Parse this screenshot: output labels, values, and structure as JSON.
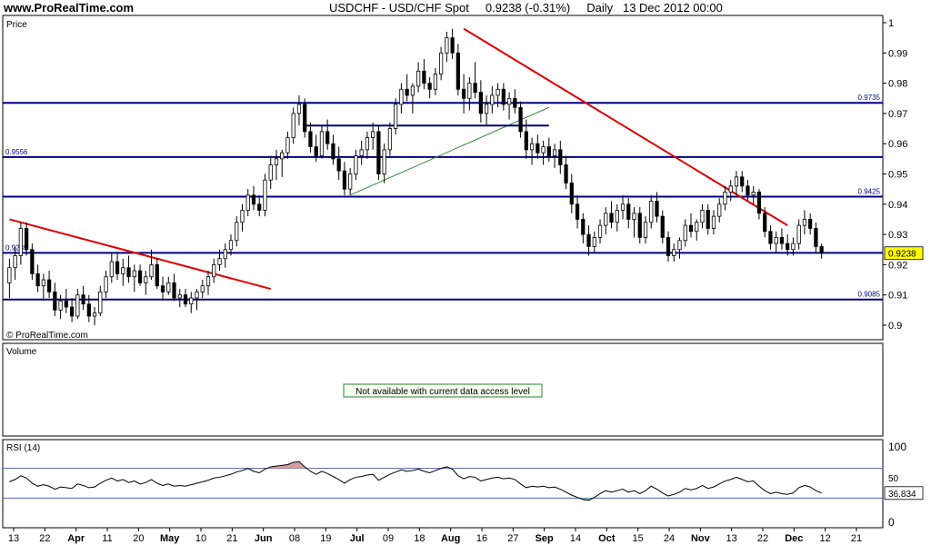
{
  "header": {
    "site": "www.ProRealTime.com",
    "symbol": "USDCHF - USD/CHF Spot",
    "last": "0.9238 (-0.31%)",
    "period": "Daily",
    "datetime": "13 Dec 2012 00:00"
  },
  "colors": {
    "line_blue": "#000080",
    "trend_red": "#e00000",
    "support_green": "#2e8b2e",
    "candle_up": "#ffffff",
    "candle_down": "#000000",
    "na_border": "#2e7d32",
    "rsi_over": "#d4a0a0",
    "rsi_under": "#80c0b0"
  },
  "price_panel": {
    "label": "Price",
    "watermark": "© ProRealTime.com",
    "price_tag": "0.9238",
    "levels": [
      {
        "value": 0.9735,
        "label": "0.9735",
        "label_side": "right"
      },
      {
        "value": 0.9556,
        "label": "0.9556",
        "label_side": "left"
      },
      {
        "value": 0.9425,
        "label": "0.9425",
        "label_side": "right"
      },
      {
        "value": 0.9239,
        "label": "0.9239",
        "label_side": "left"
      },
      {
        "value": 0.9085,
        "label": "0.9085",
        "label_side": "right"
      }
    ],
    "y_ticks": [
      "1",
      "0.99",
      "0.98",
      "0.97",
      "0.96",
      "0.95",
      "0.94",
      "0.93",
      "0.92",
      "0.91",
      "0.9"
    ]
  },
  "volume_panel": {
    "label": "Volume",
    "message": "Not available with current data access level"
  },
  "rsi_panel": {
    "label": "RSI (14)",
    "ticks": [
      "100",
      "50",
      "0"
    ],
    "value_tag": "36.834",
    "overbought": 70,
    "oversold": 30
  },
  "x_axis": {
    "labels": [
      "13",
      "22",
      "Apr",
      "11",
      "20",
      "May",
      "10",
      "21",
      "Jun",
      "08",
      "19",
      "Jul",
      "09",
      "18",
      "Aug",
      "16",
      "27",
      "Sep",
      "14",
      "Oct",
      "15",
      "24",
      "Nov",
      "13",
      "22",
      "Dec",
      "12",
      "21"
    ],
    "bold": [
      "Apr",
      "May",
      "Jun",
      "Jul",
      "Aug",
      "Sep",
      "Oct",
      "Nov",
      "Dec"
    ]
  },
  "chart_data": {
    "type": "candlestick",
    "title": "USDCHF - USD/CHF Spot",
    "ylim": [
      0.895,
      1.0
    ],
    "ohlc": [
      [
        0.914,
        0.922,
        0.909,
        0.919
      ],
      [
        0.919,
        0.926,
        0.915,
        0.923
      ],
      [
        0.923,
        0.934,
        0.92,
        0.932
      ],
      [
        0.932,
        0.934,
        0.923,
        0.925
      ],
      [
        0.925,
        0.927,
        0.915,
        0.917
      ],
      [
        0.917,
        0.92,
        0.911,
        0.913
      ],
      [
        0.913,
        0.917,
        0.908,
        0.915
      ],
      [
        0.915,
        0.918,
        0.909,
        0.911
      ],
      [
        0.911,
        0.914,
        0.903,
        0.905
      ],
      [
        0.905,
        0.91,
        0.902,
        0.908
      ],
      [
        0.908,
        0.912,
        0.904,
        0.906
      ],
      [
        0.906,
        0.909,
        0.901,
        0.903
      ],
      [
        0.903,
        0.912,
        0.902,
        0.91
      ],
      [
        0.91,
        0.913,
        0.905,
        0.907
      ],
      [
        0.907,
        0.91,
        0.901,
        0.903
      ],
      [
        0.903,
        0.906,
        0.9,
        0.904
      ],
      [
        0.904,
        0.913,
        0.903,
        0.911
      ],
      [
        0.911,
        0.918,
        0.909,
        0.916
      ],
      [
        0.916,
        0.924,
        0.914,
        0.921
      ],
      [
        0.921,
        0.924,
        0.915,
        0.917
      ],
      [
        0.917,
        0.922,
        0.913,
        0.919
      ],
      [
        0.919,
        0.923,
        0.914,
        0.916
      ],
      [
        0.916,
        0.92,
        0.911,
        0.918
      ],
      [
        0.918,
        0.92,
        0.913,
        0.914
      ],
      [
        0.914,
        0.918,
        0.91,
        0.916
      ],
      [
        0.916,
        0.925,
        0.915,
        0.92
      ],
      [
        0.92,
        0.922,
        0.912,
        0.913
      ],
      [
        0.913,
        0.916,
        0.908,
        0.911
      ],
      [
        0.911,
        0.916,
        0.91,
        0.914
      ],
      [
        0.914,
        0.917,
        0.908,
        0.909
      ],
      [
        0.909,
        0.912,
        0.906,
        0.91
      ],
      [
        0.91,
        0.912,
        0.906,
        0.907
      ],
      [
        0.907,
        0.911,
        0.904,
        0.909
      ],
      [
        0.909,
        0.912,
        0.905,
        0.911
      ],
      [
        0.911,
        0.915,
        0.909,
        0.913
      ],
      [
        0.913,
        0.918,
        0.91,
        0.916
      ],
      [
        0.916,
        0.922,
        0.914,
        0.92
      ],
      [
        0.92,
        0.925,
        0.918,
        0.922
      ],
      [
        0.922,
        0.927,
        0.919,
        0.925
      ],
      [
        0.925,
        0.93,
        0.923,
        0.928
      ],
      [
        0.928,
        0.936,
        0.926,
        0.934
      ],
      [
        0.934,
        0.94,
        0.931,
        0.938
      ],
      [
        0.938,
        0.945,
        0.936,
        0.943
      ],
      [
        0.943,
        0.946,
        0.938,
        0.94
      ],
      [
        0.94,
        0.943,
        0.936,
        0.938
      ],
      [
        0.938,
        0.95,
        0.936,
        0.948
      ],
      [
        0.948,
        0.956,
        0.945,
        0.953
      ],
      [
        0.953,
        0.958,
        0.948,
        0.955
      ],
      [
        0.955,
        0.958,
        0.949,
        0.957
      ],
      [
        0.957,
        0.964,
        0.955,
        0.962
      ],
      [
        0.962,
        0.972,
        0.96,
        0.97
      ],
      [
        0.97,
        0.976,
        0.966,
        0.973
      ],
      [
        0.973,
        0.975,
        0.962,
        0.964
      ],
      [
        0.964,
        0.967,
        0.957,
        0.959
      ],
      [
        0.959,
        0.963,
        0.954,
        0.956
      ],
      [
        0.956,
        0.966,
        0.955,
        0.964
      ],
      [
        0.964,
        0.968,
        0.958,
        0.96
      ],
      [
        0.96,
        0.963,
        0.953,
        0.955
      ],
      [
        0.955,
        0.959,
        0.948,
        0.951
      ],
      [
        0.951,
        0.954,
        0.943,
        0.945
      ],
      [
        0.945,
        0.952,
        0.943,
        0.95
      ],
      [
        0.95,
        0.958,
        0.948,
        0.956
      ],
      [
        0.956,
        0.961,
        0.953,
        0.958
      ],
      [
        0.958,
        0.964,
        0.955,
        0.962
      ],
      [
        0.962,
        0.967,
        0.958,
        0.964
      ],
      [
        0.964,
        0.966,
        0.948,
        0.95
      ],
      [
        0.95,
        0.96,
        0.947,
        0.958
      ],
      [
        0.958,
        0.967,
        0.956,
        0.965
      ],
      [
        0.965,
        0.975,
        0.963,
        0.973
      ],
      [
        0.973,
        0.98,
        0.97,
        0.978
      ],
      [
        0.978,
        0.983,
        0.974,
        0.976
      ],
      [
        0.976,
        0.98,
        0.97,
        0.979
      ],
      [
        0.979,
        0.987,
        0.977,
        0.984
      ],
      [
        0.984,
        0.988,
        0.978,
        0.98
      ],
      [
        0.98,
        0.982,
        0.975,
        0.978
      ],
      [
        0.978,
        0.985,
        0.976,
        0.983
      ],
      [
        0.983,
        0.992,
        0.981,
        0.99
      ],
      [
        0.99,
        0.997,
        0.987,
        0.995
      ],
      [
        0.995,
        0.998,
        0.988,
        0.99
      ],
      [
        0.99,
        0.993,
        0.976,
        0.978
      ],
      [
        0.978,
        0.983,
        0.97,
        0.975
      ],
      [
        0.975,
        0.982,
        0.971,
        0.98
      ],
      [
        0.98,
        0.987,
        0.975,
        0.977
      ],
      [
        0.977,
        0.981,
        0.967,
        0.97
      ],
      [
        0.97,
        0.976,
        0.966,
        0.973
      ],
      [
        0.973,
        0.979,
        0.97,
        0.976
      ],
      [
        0.976,
        0.98,
        0.972,
        0.978
      ],
      [
        0.978,
        0.98,
        0.971,
        0.973
      ],
      [
        0.973,
        0.977,
        0.968,
        0.975
      ],
      [
        0.975,
        0.978,
        0.97,
        0.972
      ],
      [
        0.972,
        0.974,
        0.962,
        0.964
      ],
      [
        0.964,
        0.968,
        0.955,
        0.958
      ],
      [
        0.958,
        0.962,
        0.953,
        0.96
      ],
      [
        0.96,
        0.963,
        0.955,
        0.957
      ],
      [
        0.957,
        0.961,
        0.953,
        0.959
      ],
      [
        0.959,
        0.962,
        0.954,
        0.956
      ],
      [
        0.956,
        0.96,
        0.952,
        0.958
      ],
      [
        0.958,
        0.961,
        0.95,
        0.953
      ],
      [
        0.953,
        0.956,
        0.945,
        0.947
      ],
      [
        0.947,
        0.95,
        0.937,
        0.94
      ],
      [
        0.94,
        0.943,
        0.932,
        0.935
      ],
      [
        0.935,
        0.937,
        0.927,
        0.93
      ],
      [
        0.93,
        0.933,
        0.923,
        0.926
      ],
      [
        0.926,
        0.931,
        0.924,
        0.929
      ],
      [
        0.929,
        0.935,
        0.927,
        0.933
      ],
      [
        0.933,
        0.939,
        0.93,
        0.937
      ],
      [
        0.937,
        0.941,
        0.932,
        0.934
      ],
      [
        0.934,
        0.94,
        0.931,
        0.938
      ],
      [
        0.938,
        0.943,
        0.935,
        0.94
      ],
      [
        0.94,
        0.942,
        0.932,
        0.935
      ],
      [
        0.935,
        0.939,
        0.929,
        0.937
      ],
      [
        0.937,
        0.939,
        0.927,
        0.929
      ],
      [
        0.929,
        0.936,
        0.927,
        0.934
      ],
      [
        0.934,
        0.943,
        0.932,
        0.941
      ],
      [
        0.941,
        0.944,
        0.934,
        0.936
      ],
      [
        0.936,
        0.938,
        0.927,
        0.929
      ],
      [
        0.929,
        0.931,
        0.921,
        0.923
      ],
      [
        0.923,
        0.927,
        0.921,
        0.925
      ],
      [
        0.925,
        0.929,
        0.922,
        0.928
      ],
      [
        0.928,
        0.935,
        0.926,
        0.933
      ],
      [
        0.933,
        0.937,
        0.929,
        0.931
      ],
      [
        0.931,
        0.935,
        0.928,
        0.934
      ],
      [
        0.934,
        0.94,
        0.932,
        0.938
      ],
      [
        0.938,
        0.94,
        0.93,
        0.932
      ],
      [
        0.932,
        0.938,
        0.93,
        0.936
      ],
      [
        0.936,
        0.942,
        0.934,
        0.94
      ],
      [
        0.94,
        0.946,
        0.938,
        0.944
      ],
      [
        0.944,
        0.948,
        0.941,
        0.946
      ],
      [
        0.946,
        0.951,
        0.943,
        0.949
      ],
      [
        0.949,
        0.951,
        0.944,
        0.946
      ],
      [
        0.946,
        0.948,
        0.941,
        0.943
      ],
      [
        0.943,
        0.946,
        0.94,
        0.944
      ],
      [
        0.944,
        0.945,
        0.935,
        0.937
      ],
      [
        0.937,
        0.939,
        0.929,
        0.931
      ],
      [
        0.931,
        0.933,
        0.925,
        0.927
      ],
      [
        0.927,
        0.931,
        0.924,
        0.929
      ],
      [
        0.929,
        0.932,
        0.925,
        0.927
      ],
      [
        0.927,
        0.93,
        0.923,
        0.925
      ],
      [
        0.925,
        0.929,
        0.923,
        0.927
      ],
      [
        0.927,
        0.935,
        0.925,
        0.933
      ],
      [
        0.933,
        0.938,
        0.93,
        0.935
      ],
      [
        0.935,
        0.937,
        0.93,
        0.932
      ],
      [
        0.932,
        0.934,
        0.924,
        0.926
      ],
      [
        0.926,
        0.927,
        0.922,
        0.9238
      ]
    ],
    "rsi": [
      52,
      55,
      60,
      57,
      50,
      46,
      48,
      46,
      42,
      45,
      44,
      43,
      49,
      47,
      44,
      45,
      50,
      54,
      57,
      53,
      55,
      51,
      53,
      49,
      51,
      55,
      50,
      47,
      49,
      46,
      47,
      46,
      48,
      50,
      52,
      54,
      57,
      58,
      60,
      62,
      65,
      67,
      70,
      66,
      64,
      69,
      72,
      73,
      74,
      75,
      78,
      79,
      72,
      66,
      62,
      66,
      63,
      59,
      55,
      50,
      55,
      58,
      59,
      61,
      62,
      54,
      58,
      62,
      65,
      68,
      66,
      67,
      69,
      66,
      64,
      67,
      70,
      72,
      69,
      60,
      56,
      59,
      58,
      53,
      55,
      57,
      58,
      56,
      57,
      55,
      49,
      44,
      46,
      45,
      46,
      44,
      45,
      42,
      38,
      34,
      31,
      28,
      27,
      31,
      36,
      40,
      38,
      40,
      42,
      38,
      40,
      36,
      40,
      46,
      42,
      37,
      33,
      35,
      38,
      43,
      41,
      43,
      47,
      43,
      45,
      49,
      53,
      55,
      58,
      55,
      52,
      53,
      46,
      40,
      36,
      38,
      36,
      35,
      37,
      44,
      47,
      45,
      40,
      36.834
    ],
    "trend_lines": [
      {
        "color": "red",
        "from": [
          0,
          0.935
        ],
        "to": [
          46,
          0.912
        ]
      },
      {
        "color": "red",
        "from": [
          80,
          0.998
        ],
        "to": [
          137,
          0.933
        ]
      },
      {
        "color": "green",
        "from": [
          60,
          0.943
        ],
        "to": [
          95,
          0.972
        ]
      },
      {
        "color": "navy",
        "from": [
          52,
          0.966
        ],
        "to": [
          95,
          0.966
        ]
      }
    ]
  }
}
